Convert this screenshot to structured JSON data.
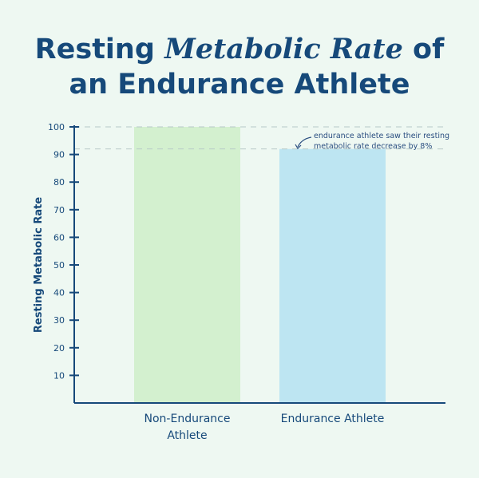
{
  "chart_data": {
    "type": "bar",
    "title_parts": [
      "Resting ",
      "Metabolic Rate",
      " of",
      "an Endurance Athlete"
    ],
    "categories": [
      "Non-Endurance Athlete",
      "Endurance Athlete"
    ],
    "category_lines": [
      [
        "Non-Endurance",
        "Athlete"
      ],
      [
        "Endurance Athlete"
      ]
    ],
    "values": [
      100,
      92
    ],
    "colors": [
      "#d3f0cf",
      "#bde5f2"
    ],
    "xlabel": "",
    "ylabel": "Resting Metabolic Rate",
    "ylim": [
      0,
      100
    ],
    "yticks": [
      10,
      20,
      30,
      40,
      50,
      60,
      70,
      80,
      90,
      100
    ],
    "reference_lines": [
      100,
      92
    ],
    "annotation": [
      "endurance athlete saw their resting",
      "metabolic rate decrease by 8%"
    ],
    "grid": false
  }
}
